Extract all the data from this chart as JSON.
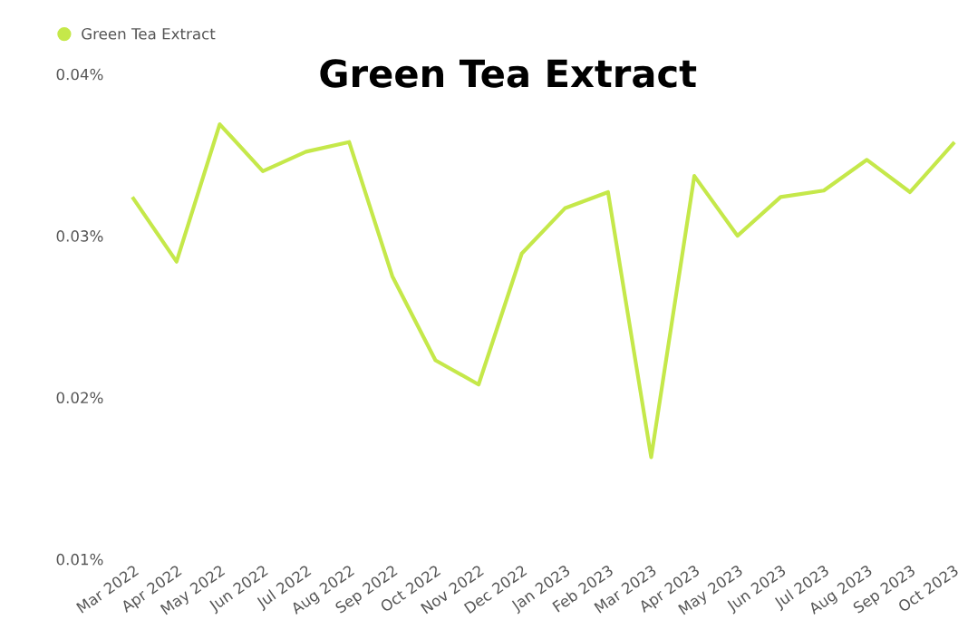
{
  "chart_data": {
    "type": "line",
    "title": "Green Tea Extract",
    "categories": [
      "Mar 2022",
      "Apr 2022",
      "May 2022",
      "Jun 2022",
      "Jul 2022",
      "Aug 2022",
      "Sep 2022",
      "Oct 2022",
      "Nov 2022",
      "Dec 2022",
      "Jan 2023",
      "Feb 2023",
      "Mar 2023",
      "Apr 2023",
      "May 2023",
      "Jun 2023",
      "Jul 2023",
      "Aug 2023",
      "Sep 2023",
      "Oct 2023"
    ],
    "series": [
      {
        "name": "Green Tea Extract",
        "color": "#c5e84a",
        "values": [
          0.0323,
          0.0284,
          0.0369,
          0.034,
          0.0352,
          0.0358,
          0.0275,
          0.0223,
          0.0208,
          0.0289,
          0.0317,
          0.0327,
          0.0163,
          0.0337,
          0.03,
          0.0324,
          0.0328,
          0.0347,
          0.0327,
          0.0357
        ]
      }
    ],
    "ylim": [
      0.01,
      0.04
    ],
    "yticks": [
      {
        "value": 0.01,
        "label": "0.01%"
      },
      {
        "value": 0.02,
        "label": "0.02%"
      },
      {
        "value": 0.03,
        "label": "0.03%"
      },
      {
        "value": 0.04,
        "label": "0.04%"
      }
    ],
    "grid": false,
    "legend": "top left",
    "marker": "none",
    "line_style": "solid"
  }
}
